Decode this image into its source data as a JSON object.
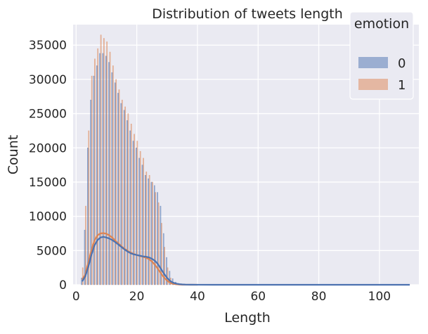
{
  "chart_data": {
    "type": "histogram",
    "title": "Distribution of tweets length",
    "xlabel": "Length",
    "ylabel": "Count",
    "xlim": [
      -1,
      113
    ],
    "ylim": [
      0,
      38000
    ],
    "x_ticks": [
      0,
      20,
      40,
      60,
      80,
      100
    ],
    "y_ticks": [
      0,
      5000,
      10000,
      15000,
      20000,
      25000,
      30000,
      35000
    ],
    "grid": true,
    "legend": {
      "title": "emotion",
      "placement": "top-right"
    },
    "bin_width": 1,
    "series": [
      {
        "name": "0",
        "color": "#4c72b0",
        "x": [
          2,
          3,
          4,
          5,
          6,
          7,
          8,
          9,
          10,
          11,
          12,
          13,
          14,
          15,
          16,
          17,
          18,
          19,
          20,
          21,
          22,
          23,
          24,
          25,
          26,
          27,
          28,
          29,
          30,
          31,
          32,
          33,
          34,
          35,
          36,
          37,
          38,
          39,
          40,
          45,
          50,
          60,
          70,
          80,
          90,
          100,
          110
        ],
        "values": [
          1000,
          8000,
          20000,
          27000,
          30500,
          32000,
          33800,
          33800,
          33400,
          32500,
          31000,
          29500,
          28000,
          26500,
          25500,
          24000,
          22500,
          21000,
          20000,
          18500,
          17500,
          16000,
          15500,
          15000,
          14500,
          13500,
          11500,
          7500,
          4000,
          2000,
          900,
          400,
          200,
          100,
          50,
          30,
          20,
          10,
          5,
          3,
          2,
          1,
          1,
          1,
          1,
          1,
          1
        ]
      },
      {
        "name": "1",
        "color": "#dd8452",
        "x": [
          2,
          3,
          4,
          5,
          6,
          7,
          8,
          9,
          10,
          11,
          12,
          13,
          14,
          15,
          16,
          17,
          18,
          19,
          20,
          21,
          22,
          23,
          24,
          25,
          26,
          27,
          28,
          29,
          30,
          31,
          32,
          33,
          34,
          35,
          36,
          37,
          38,
          39,
          40,
          45,
          50,
          60,
          70,
          80,
          90,
          100,
          110
        ],
        "values": [
          2500,
          11500,
          22500,
          30500,
          33000,
          34500,
          36500,
          36000,
          35500,
          34000,
          32000,
          30000,
          28500,
          27000,
          26000,
          25000,
          23500,
          22000,
          21000,
          19500,
          18500,
          16500,
          16000,
          15000,
          13500,
          12000,
          9000,
          5500,
          2500,
          1000,
          400,
          200,
          80,
          40,
          20,
          10,
          5,
          3,
          2,
          1,
          1,
          1,
          0,
          0,
          0,
          0,
          0
        ]
      }
    ],
    "kde": [
      {
        "name": "0",
        "color": "#4c72b0",
        "x": [
          2,
          3,
          4,
          5,
          6,
          7,
          8,
          9,
          10,
          11,
          12,
          13,
          14,
          15,
          16,
          17,
          18,
          19,
          20,
          21,
          22,
          23,
          24,
          25,
          26,
          27,
          28,
          29,
          30,
          31,
          32,
          33,
          34,
          35,
          36,
          38,
          40,
          45,
          60,
          80,
          100,
          110
        ],
        "values": [
          500,
          1200,
          2600,
          4300,
          5700,
          6500,
          6900,
          7000,
          6900,
          6750,
          6500,
          6200,
          5850,
          5500,
          5150,
          4850,
          4600,
          4450,
          4350,
          4250,
          4150,
          4100,
          4000,
          3800,
          3500,
          3000,
          2300,
          1600,
          1000,
          550,
          300,
          170,
          90,
          50,
          25,
          10,
          5,
          2,
          1,
          0,
          0,
          0
        ]
      },
      {
        "name": "1",
        "color": "#dd8452",
        "x": [
          2,
          3,
          4,
          5,
          6,
          7,
          8,
          9,
          10,
          11,
          12,
          13,
          14,
          15,
          16,
          17,
          18,
          19,
          20,
          21,
          22,
          23,
          24,
          25,
          26,
          27,
          28,
          29,
          30,
          31,
          32,
          33,
          34,
          35,
          36,
          38,
          40
        ],
        "values": [
          700,
          1500,
          3200,
          5000,
          6400,
          7200,
          7500,
          7550,
          7450,
          7200,
          6850,
          6400,
          6000,
          5600,
          5250,
          4950,
          4700,
          4500,
          4350,
          4200,
          4100,
          3950,
          3750,
          3400,
          2900,
          2300,
          1650,
          1050,
          600,
          300,
          150,
          70,
          30,
          15,
          8,
          2,
          0
        ]
      }
    ]
  }
}
